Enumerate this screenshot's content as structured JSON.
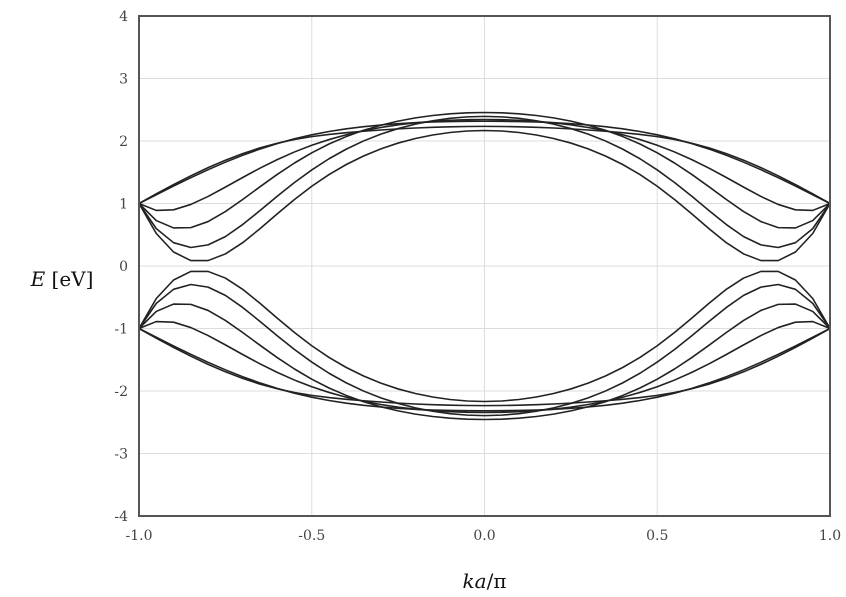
{
  "chart_data": {
    "type": "line",
    "title": "",
    "xlabel": {
      "italic": "ka",
      "rest": "/π"
    },
    "ylabel": {
      "italic": "E",
      "rest": " [eV]"
    },
    "xlim": [
      -1.0,
      1.0
    ],
    "ylim": [
      -4,
      4
    ],
    "xticks": [
      "-1.0",
      "-0.5",
      "0.0",
      "0.5",
      "1.0"
    ],
    "yticks": [
      "4",
      "3",
      "2",
      "1",
      "0",
      "-1",
      "-2",
      "-3",
      "-4"
    ],
    "grid": true,
    "legend": "none",
    "line_color": "#222222",
    "grid_color": "#dddddd",
    "frame_color": "#555555",
    "x": [
      -1.0,
      -0.95,
      -0.9,
      -0.85,
      -0.8,
      -0.75,
      -0.7,
      -0.65,
      -0.6,
      -0.55,
      -0.5,
      -0.45,
      -0.4,
      -0.35,
      -0.3,
      -0.25,
      -0.2,
      -0.15,
      -0.1,
      -0.05,
      0.0,
      0.05,
      0.1,
      0.15,
      0.2,
      0.25,
      0.3,
      0.35,
      0.4,
      0.45,
      0.5,
      0.55,
      0.6,
      0.65,
      0.7,
      0.75,
      0.8,
      0.85,
      0.9,
      0.95,
      1.0
    ],
    "series": [
      {
        "values": [
          1.0,
          1.154,
          1.302,
          1.443,
          1.574,
          1.693,
          1.798,
          1.889,
          1.964,
          2.024,
          2.07,
          2.105,
          2.133,
          2.156,
          2.176,
          2.194,
          2.208,
          2.219,
          2.227,
          2.232,
          2.234,
          2.232,
          2.227,
          2.219,
          2.208,
          2.194,
          2.176,
          2.156,
          2.133,
          2.105,
          2.07,
          2.024,
          1.964,
          1.889,
          1.798,
          1.693,
          1.574,
          1.443,
          1.302,
          1.154,
          1.0
        ]
      },
      {
        "values": [
          1.0,
          1.14,
          1.279,
          1.413,
          1.541,
          1.661,
          1.771,
          1.871,
          1.959,
          2.035,
          2.099,
          2.152,
          2.195,
          2.229,
          2.256,
          2.277,
          2.293,
          2.304,
          2.311,
          2.315,
          2.317,
          2.315,
          2.311,
          2.304,
          2.293,
          2.277,
          2.256,
          2.229,
          2.195,
          2.152,
          2.099,
          2.035,
          1.959,
          1.871,
          1.771,
          1.661,
          1.541,
          1.413,
          1.279,
          1.14,
          1.0
        ]
      },
      {
        "values": [
          1.0,
          0.889,
          0.899,
          0.985,
          1.113,
          1.262,
          1.416,
          1.565,
          1.702,
          1.825,
          1.932,
          2.023,
          2.1,
          2.164,
          2.216,
          2.258,
          2.291,
          2.315,
          2.331,
          2.341,
          2.344,
          2.341,
          2.331,
          2.315,
          2.291,
          2.258,
          2.216,
          2.164,
          2.1,
          2.023,
          1.932,
          1.825,
          1.702,
          1.565,
          1.416,
          1.262,
          1.113,
          0.985,
          0.899,
          0.889,
          1.0
        ]
      },
      {
        "values": [
          1.0,
          0.727,
          0.609,
          0.614,
          0.711,
          0.871,
          1.064,
          1.267,
          1.465,
          1.648,
          1.811,
          1.952,
          2.071,
          2.171,
          2.252,
          2.318,
          2.37,
          2.408,
          2.435,
          2.451,
          2.456,
          2.451,
          2.435,
          2.408,
          2.37,
          2.318,
          2.252,
          2.171,
          2.071,
          1.952,
          1.811,
          1.648,
          1.465,
          1.267,
          1.064,
          0.871,
          0.711,
          0.614,
          0.609,
          0.727,
          1.0
        ]
      },
      {
        "values": [
          1.0,
          0.598,
          0.373,
          0.296,
          0.338,
          0.47,
          0.663,
          0.886,
          1.116,
          1.336,
          1.537,
          1.716,
          1.87,
          2.001,
          2.11,
          2.199,
          2.27,
          2.324,
          2.363,
          2.386,
          2.394,
          2.386,
          2.363,
          2.324,
          2.27,
          2.199,
          2.11,
          2.001,
          1.87,
          1.716,
          1.537,
          1.336,
          1.116,
          0.886,
          0.663,
          0.47,
          0.338,
          0.296,
          0.373,
          0.598,
          1.0
        ]
      },
      {
        "values": [
          1.0,
          0.52,
          0.224,
          0.087,
          0.087,
          0.193,
          0.373,
          0.596,
          0.834,
          1.064,
          1.276,
          1.463,
          1.624,
          1.76,
          1.874,
          1.967,
          2.04,
          2.096,
          2.136,
          2.16,
          2.168,
          2.16,
          2.136,
          2.096,
          2.04,
          1.967,
          1.874,
          1.76,
          1.624,
          1.463,
          1.276,
          1.064,
          0.834,
          0.596,
          0.373,
          0.193,
          0.087,
          0.087,
          0.224,
          0.52,
          1.0
        ]
      },
      {
        "values": [
          -1.0,
          -0.52,
          -0.224,
          -0.087,
          -0.087,
          -0.193,
          -0.373,
          -0.596,
          -0.834,
          -1.064,
          -1.276,
          -1.463,
          -1.624,
          -1.76,
          -1.874,
          -1.967,
          -2.04,
          -2.096,
          -2.136,
          -2.16,
          -2.168,
          -2.16,
          -2.136,
          -2.096,
          -2.04,
          -1.967,
          -1.874,
          -1.76,
          -1.624,
          -1.463,
          -1.276,
          -1.064,
          -0.834,
          -0.596,
          -0.373,
          -0.193,
          -0.087,
          -0.087,
          -0.224,
          -0.52,
          -1.0
        ]
      },
      {
        "values": [
          -1.0,
          -0.598,
          -0.373,
          -0.296,
          -0.338,
          -0.47,
          -0.663,
          -0.886,
          -1.116,
          -1.336,
          -1.537,
          -1.716,
          -1.87,
          -2.001,
          -2.11,
          -2.199,
          -2.27,
          -2.324,
          -2.363,
          -2.386,
          -2.394,
          -2.386,
          -2.363,
          -2.324,
          -2.27,
          -2.199,
          -2.11,
          -2.001,
          -1.87,
          -1.716,
          -1.537,
          -1.336,
          -1.116,
          -0.886,
          -0.663,
          -0.47,
          -0.338,
          -0.296,
          -0.373,
          -0.598,
          -1.0
        ]
      },
      {
        "values": [
          -1.0,
          -0.727,
          -0.609,
          -0.614,
          -0.711,
          -0.871,
          -1.064,
          -1.267,
          -1.465,
          -1.648,
          -1.811,
          -1.952,
          -2.071,
          -2.171,
          -2.252,
          -2.318,
          -2.37,
          -2.408,
          -2.435,
          -2.451,
          -2.456,
          -2.451,
          -2.435,
          -2.408,
          -2.37,
          -2.318,
          -2.252,
          -2.171,
          -2.071,
          -1.952,
          -1.811,
          -1.648,
          -1.465,
          -1.267,
          -1.064,
          -0.871,
          -0.711,
          -0.614,
          -0.609,
          -0.727,
          -1.0
        ]
      },
      {
        "values": [
          -1.0,
          -0.889,
          -0.899,
          -0.985,
          -1.113,
          -1.262,
          -1.416,
          -1.565,
          -1.702,
          -1.825,
          -1.932,
          -2.023,
          -2.1,
          -2.164,
          -2.216,
          -2.258,
          -2.291,
          -2.315,
          -2.331,
          -2.341,
          -2.344,
          -2.341,
          -2.331,
          -2.315,
          -2.291,
          -2.258,
          -2.216,
          -2.164,
          -2.1,
          -2.023,
          -1.932,
          -1.825,
          -1.702,
          -1.565,
          -1.416,
          -1.262,
          -1.113,
          -0.985,
          -0.899,
          -0.889,
          -1.0
        ]
      },
      {
        "values": [
          -1.0,
          -1.14,
          -1.279,
          -1.413,
          -1.541,
          -1.661,
          -1.771,
          -1.871,
          -1.959,
          -2.035,
          -2.099,
          -2.152,
          -2.195,
          -2.229,
          -2.256,
          -2.277,
          -2.293,
          -2.304,
          -2.311,
          -2.315,
          -2.317,
          -2.315,
          -2.311,
          -2.304,
          -2.293,
          -2.277,
          -2.256,
          -2.229,
          -2.195,
          -2.152,
          -2.099,
          -2.035,
          -1.959,
          -1.871,
          -1.771,
          -1.661,
          -1.541,
          -1.413,
          -1.279,
          -1.14,
          -1.0
        ]
      },
      {
        "values": [
          -1.0,
          -1.154,
          -1.302,
          -1.443,
          -1.574,
          -1.693,
          -1.798,
          -1.889,
          -1.964,
          -2.024,
          -2.07,
          -2.105,
          -2.133,
          -2.156,
          -2.176,
          -2.194,
          -2.208,
          -2.219,
          -2.227,
          -2.232,
          -2.234,
          -2.232,
          -2.227,
          -2.219,
          -2.208,
          -2.194,
          -2.176,
          -2.156,
          -2.133,
          -2.105,
          -2.07,
          -2.024,
          -1.964,
          -1.889,
          -1.798,
          -1.693,
          -1.574,
          -1.443,
          -1.302,
          -1.154,
          -1.0
        ]
      }
    ]
  }
}
